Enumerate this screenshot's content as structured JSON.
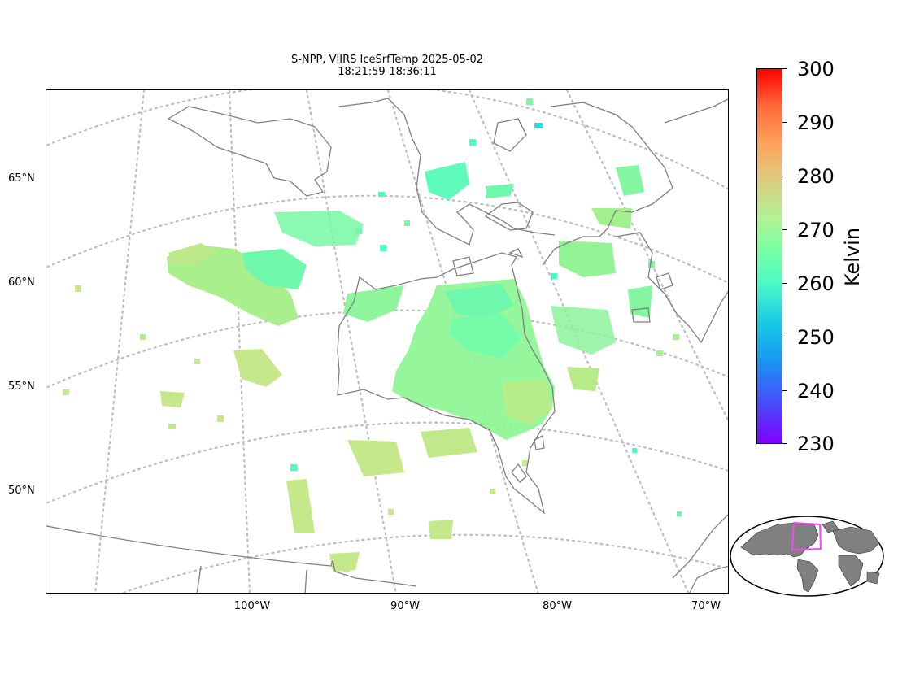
{
  "title": {
    "line1": "S-NPP, VIIRS IceSrfTemp 2025-05-02",
    "line2": "18:21:59-18:36:11"
  },
  "map": {
    "lat_labels": [
      "65°N",
      "60°N",
      "55°N",
      "50°N"
    ],
    "lon_labels": [
      "100°W",
      "90°W",
      "80°W",
      "70°W"
    ],
    "colors": {
      "coastline": "#808080",
      "graticule": "#bdbdbd",
      "data_cold": "#4dfbc5",
      "data_mid": "#80ff9f",
      "data_warm": "#c4e88a"
    }
  },
  "colorbar": {
    "label": "Kelvin",
    "ticks": [
      "300",
      "290",
      "280",
      "270",
      "260",
      "250",
      "240",
      "230"
    ],
    "range": [
      230,
      300
    ],
    "colormap": "rainbow"
  },
  "inset": {
    "land_color": "#808080",
    "box_color": "#ff44ff"
  }
}
